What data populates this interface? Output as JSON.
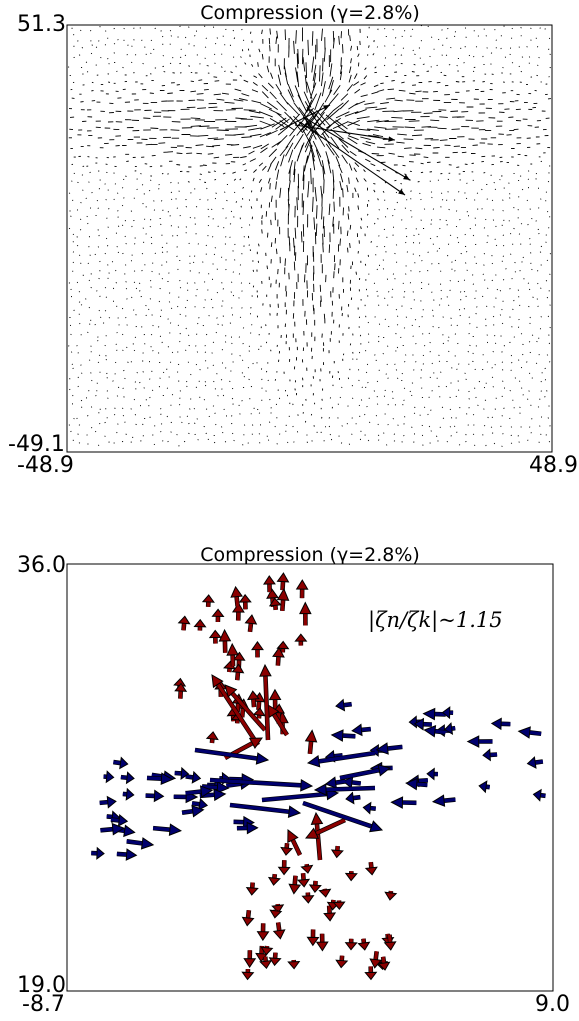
{
  "chart_data": [
    {
      "type": "quiver",
      "title": "Compression (γ=2.8%)",
      "xlim": [
        -48.9,
        48.9
      ],
      "ylim": [
        -49.1,
        51.3
      ],
      "tick_labels": {
        "x": [
          "-48.9",
          "48.9"
        ],
        "y": [
          "51.3",
          "-49.1"
        ]
      },
      "grid": false,
      "arrow_color": "#000000",
      "description_field": "dense displacement field; large vectors concentrated near center (x≈0, y≈20–40)"
    },
    {
      "type": "quiver",
      "title": "Compression (γ=2.8%)",
      "xlim": [
        -8.7,
        9.0
      ],
      "ylim": [
        19.0,
        36.0
      ],
      "tick_labels": {
        "x": [
          "-8.7",
          "9.0"
        ],
        "y": [
          "36.0",
          "19.0"
        ]
      },
      "annotation": "|ζn/ζk|~1.15",
      "grid": false,
      "colors": {
        "vertical": "#8b0000",
        "horizontal": "#00006e",
        "edge": "#000000"
      }
    }
  ]
}
